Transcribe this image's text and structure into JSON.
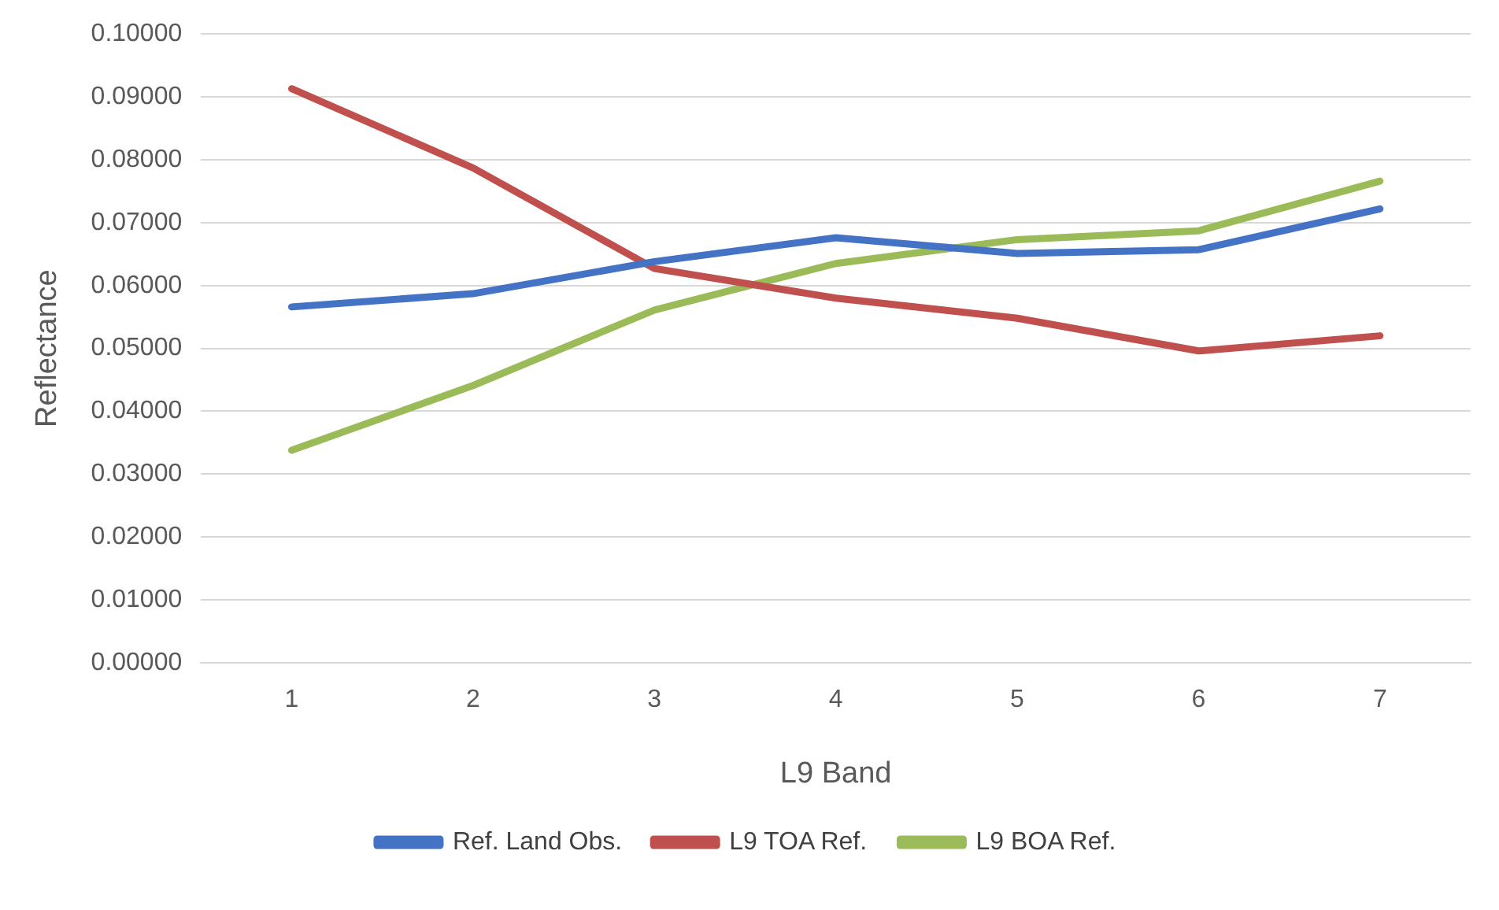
{
  "chart_data": {
    "type": "line",
    "xlabel": "L9 Band",
    "ylabel": "Reflectance",
    "categories": [
      "1",
      "2",
      "3",
      "4",
      "5",
      "6",
      "7"
    ],
    "series": [
      {
        "name": "Ref. Land Obs.",
        "color": "#4472c4",
        "values": [
          0.0566,
          0.0587,
          0.0638,
          0.0676,
          0.0651,
          0.0657,
          0.0722
        ]
      },
      {
        "name": "L9 TOA Ref.",
        "color": "#c0504d",
        "values": [
          0.0913,
          0.0787,
          0.0627,
          0.058,
          0.0548,
          0.0496,
          0.052
        ]
      },
      {
        "name": "L9 BOA Ref.",
        "color": "#9bbb59",
        "values": [
          0.0338,
          0.0441,
          0.0561,
          0.0635,
          0.0673,
          0.0687,
          0.0766
        ]
      }
    ],
    "ylim": [
      0,
      0.1
    ],
    "yticks": [
      {
        "value": 0,
        "label": "0.00000"
      },
      {
        "value": 0.01,
        "label": "0.01000"
      },
      {
        "value": 0.02,
        "label": "0.02000"
      },
      {
        "value": 0.03,
        "label": "0.03000"
      },
      {
        "value": 0.04,
        "label": "0.04000"
      },
      {
        "value": 0.05,
        "label": "0.05000"
      },
      {
        "value": 0.06,
        "label": "0.06000"
      },
      {
        "value": 0.07,
        "label": "0.07000"
      },
      {
        "value": 0.08,
        "label": "0.08000"
      },
      {
        "value": 0.09,
        "label": "0.09000"
      },
      {
        "value": 0.1,
        "label": "0.10000"
      }
    ],
    "grid": "y",
    "legend": "bottom",
    "marker": "none",
    "line_style": "solid"
  }
}
